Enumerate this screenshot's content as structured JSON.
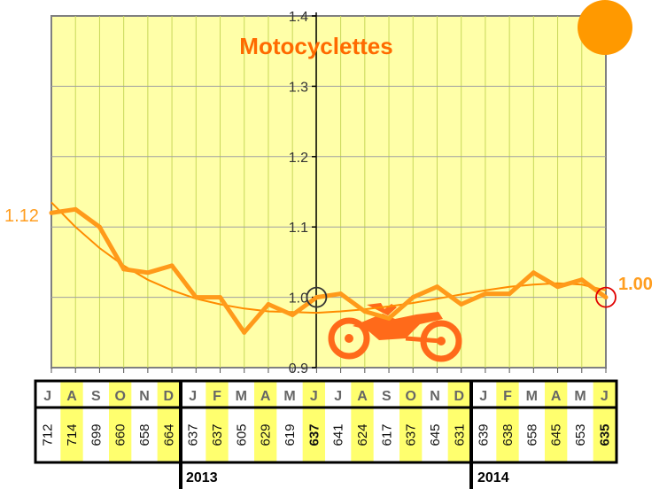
{
  "chart_data": {
    "type": "line",
    "title": "Motocyclettes",
    "ylim": [
      0.9,
      1.4
    ],
    "yticks": [
      "0.9",
      "1.0",
      "1.1",
      "1.2",
      "1.3",
      "1.4"
    ],
    "grid": true,
    "months": [
      "J",
      "A",
      "S",
      "O",
      "N",
      "D",
      "J",
      "F",
      "M",
      "A",
      "M",
      "J",
      "J",
      "A",
      "S",
      "O",
      "N",
      "D",
      "J",
      "F",
      "M",
      "A",
      "M",
      "J"
    ],
    "counts": [
      "712",
      "714",
      "699",
      "660",
      "658",
      "664",
      "637",
      "637",
      "605",
      "629",
      "619",
      "637",
      "641",
      "624",
      "617",
      "637",
      "645",
      "631",
      "639",
      "638",
      "658",
      "645",
      "653",
      "635"
    ],
    "series": [
      {
        "name": "",
        "values": [
          1.12,
          1.125,
          1.1,
          1.04,
          1.035,
          1.045,
          1.0,
          1.0,
          0.95,
          0.99,
          0.975,
          1.0,
          1.005,
          0.98,
          0.97,
          1.0,
          1.015,
          0.99,
          1.005,
          1.005,
          1.035,
          1.015,
          1.025,
          1.0
        ]
      },
      {
        "name": "",
        "values": [
          1.135,
          1.1,
          1.07,
          1.045,
          1.025,
          1.01,
          0.998,
          0.99,
          0.984,
          0.98,
          0.979,
          0.978,
          0.98,
          0.983,
          0.987,
          0.992,
          0.998,
          1.004,
          1.01,
          1.015,
          1.018,
          1.02,
          1.018,
          1.01
        ]
      }
    ],
    "start_label": "1.12",
    "end_label": "1.00",
    "years": [
      "2013",
      "2014"
    ],
    "colors": {
      "plot_bg": "#ffffa8",
      "line": "#ff9a1a",
      "trend": "#ff8c00",
      "title": "#ff6a00",
      "grid_v": "#c8d85a",
      "grid_h": "#a0a0a0",
      "marker_start": "#333333",
      "marker_end": "#e00000",
      "highlight": "#ffff6e",
      "sun": "#ff9900",
      "motorbike": "#ff6a1a",
      "year_2014": "#e00000"
    }
  }
}
